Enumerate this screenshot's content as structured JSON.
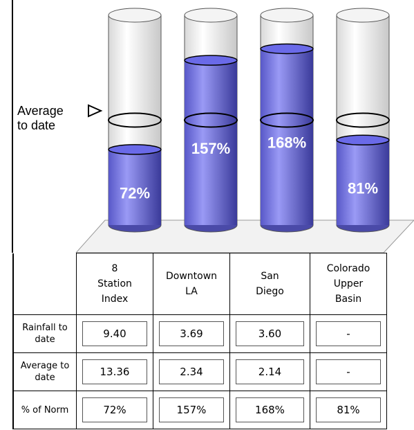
{
  "chart_data": {
    "type": "cylinder",
    "categories": [
      "8 Station Index",
      "Downtown LA",
      "San Diego",
      "Colorado Upper Basin"
    ],
    "values": [
      72,
      157,
      168,
      81
    ],
    "value_labels": [
      "72%",
      "157%",
      "168%",
      "81%"
    ],
    "color": "#6a6ae8",
    "ylim": [
      0,
      200
    ],
    "reference": {
      "value": 100,
      "label": "Average to date"
    }
  },
  "table": {
    "rows": [
      {
        "label": "Rainfall to date",
        "cells": [
          "9.40",
          "3.69",
          "3.60",
          "-"
        ]
      },
      {
        "label": "Average to date",
        "cells": [
          "13.36",
          "2.34",
          "2.14",
          "-"
        ]
      },
      {
        "label": "% of Norm",
        "cells": [
          "72%",
          "157%",
          "168%",
          "81%"
        ]
      }
    ]
  }
}
